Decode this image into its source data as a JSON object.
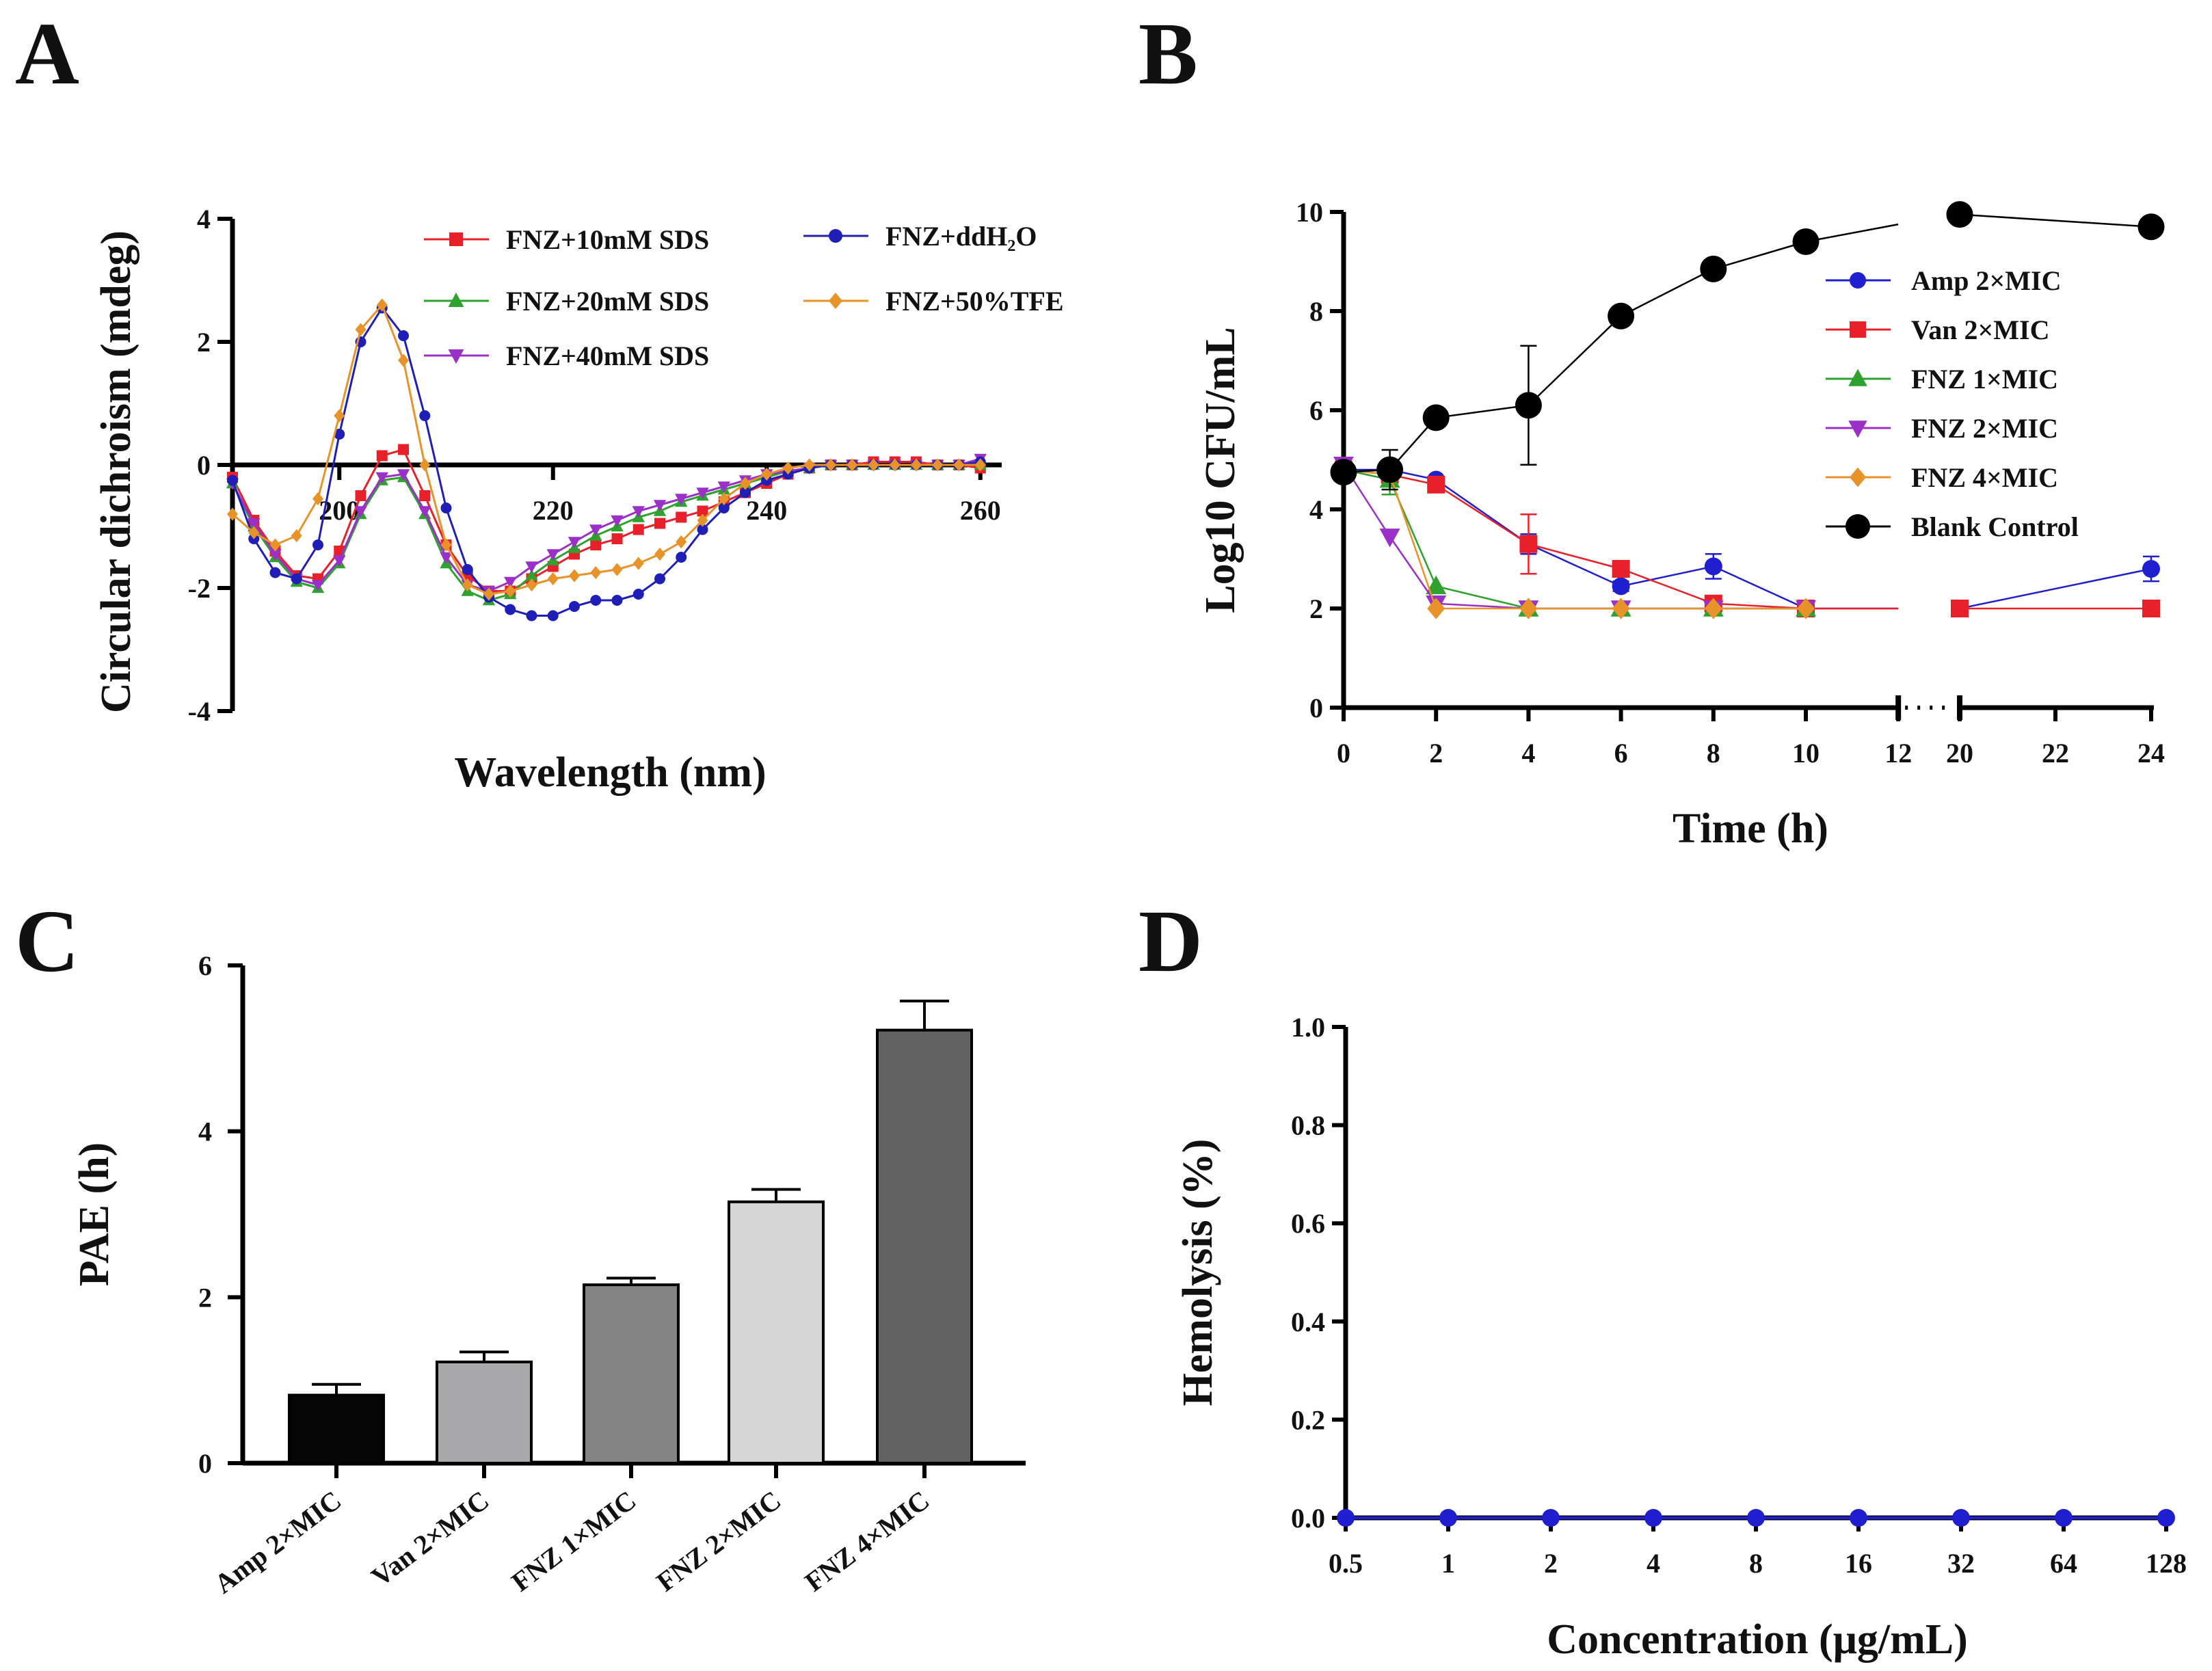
{
  "panels": {
    "A": "A",
    "B": "B",
    "C": "C",
    "D": "D"
  },
  "chart_data": [
    {
      "id": "A",
      "type": "line",
      "xlabel": "Wavelength (nm)",
      "ylabel": "Circular dichroism (mdeg)",
      "xlim": [
        190,
        262
      ],
      "ylim": [
        -4,
        4
      ],
      "xticks": [
        200,
        220,
        240,
        260
      ],
      "yticks": [
        -4,
        -2,
        0,
        2,
        4
      ],
      "series": [
        {
          "name": "FNZ+10mM SDS",
          "color": "#e8202a",
          "marker": "square",
          "x": [
            190,
            192,
            194,
            196,
            198,
            200,
            202,
            204,
            206,
            208,
            210,
            212,
            214,
            216,
            218,
            220,
            222,
            224,
            226,
            228,
            230,
            232,
            234,
            236,
            238,
            240,
            242,
            244,
            246,
            248,
            250,
            252,
            254,
            256,
            258,
            260
          ],
          "y": [
            -0.2,
            -0.9,
            -1.4,
            -1.8,
            -1.85,
            -1.4,
            -0.5,
            0.15,
            0.25,
            -0.5,
            -1.3,
            -1.8,
            -2.05,
            -2.05,
            -1.85,
            -1.65,
            -1.45,
            -1.3,
            -1.2,
            -1.05,
            -0.95,
            -0.85,
            -0.75,
            -0.6,
            -0.45,
            -0.3,
            -0.15,
            -0.05,
            0,
            0,
            0.05,
            0.05,
            0.05,
            0,
            0,
            -0.05
          ]
        },
        {
          "name": "FNZ+20mM SDS",
          "color": "#2ea12e",
          "marker": "triangle-up",
          "x": [
            190,
            192,
            194,
            196,
            198,
            200,
            202,
            204,
            206,
            208,
            210,
            212,
            214,
            216,
            218,
            220,
            222,
            224,
            226,
            228,
            230,
            232,
            234,
            236,
            238,
            240,
            242,
            244,
            246,
            248,
            250,
            252,
            254,
            256,
            258,
            260
          ],
          "y": [
            -0.3,
            -1.0,
            -1.5,
            -1.9,
            -2.0,
            -1.6,
            -0.8,
            -0.25,
            -0.2,
            -0.8,
            -1.6,
            -2.05,
            -2.2,
            -2.1,
            -1.8,
            -1.55,
            -1.35,
            -1.15,
            -1.0,
            -0.85,
            -0.75,
            -0.6,
            -0.5,
            -0.4,
            -0.3,
            -0.2,
            -0.1,
            -0.05,
            0,
            0,
            0,
            0,
            0,
            0,
            0,
            0
          ]
        },
        {
          "name": "FNZ+40mM SDS",
          "color": "#9b30c8",
          "marker": "triangle-down",
          "x": [
            190,
            192,
            194,
            196,
            198,
            200,
            202,
            204,
            206,
            208,
            210,
            212,
            214,
            216,
            218,
            220,
            222,
            224,
            226,
            228,
            230,
            232,
            234,
            236,
            238,
            240,
            242,
            244,
            246,
            248,
            250,
            252,
            254,
            256,
            258,
            260
          ],
          "y": [
            -0.3,
            -0.95,
            -1.45,
            -1.85,
            -1.95,
            -1.55,
            -0.75,
            -0.2,
            -0.15,
            -0.75,
            -1.5,
            -1.95,
            -2.05,
            -1.9,
            -1.65,
            -1.45,
            -1.25,
            -1.05,
            -0.9,
            -0.75,
            -0.65,
            -0.55,
            -0.45,
            -0.35,
            -0.25,
            -0.15,
            -0.1,
            -0.05,
            0,
            0,
            0,
            0,
            0,
            0,
            0,
            0.1
          ]
        },
        {
          "name": "FNZ+ddH₂O",
          "color": "#1f1fb8",
          "marker": "circle",
          "x": [
            190,
            192,
            194,
            196,
            198,
            200,
            202,
            204,
            206,
            208,
            210,
            212,
            214,
            216,
            218,
            220,
            222,
            224,
            226,
            228,
            230,
            232,
            234,
            236,
            238,
            240,
            242,
            244,
            246,
            248,
            250,
            252,
            254,
            256,
            258,
            260
          ],
          "y": [
            -0.25,
            -1.2,
            -1.75,
            -1.85,
            -1.3,
            0.5,
            2.0,
            2.55,
            2.1,
            0.8,
            -0.7,
            -1.7,
            -2.15,
            -2.35,
            -2.45,
            -2.45,
            -2.3,
            -2.2,
            -2.2,
            -2.1,
            -1.85,
            -1.5,
            -1.05,
            -0.7,
            -0.45,
            -0.25,
            -0.15,
            -0.05,
            0,
            0,
            0,
            0,
            0,
            0,
            0,
            0.05
          ]
        },
        {
          "name": "FNZ+50%TFE",
          "color": "#e8922a",
          "marker": "diamond",
          "x": [
            190,
            192,
            194,
            196,
            198,
            200,
            202,
            204,
            206,
            208,
            210,
            212,
            214,
            216,
            218,
            220,
            222,
            224,
            226,
            228,
            230,
            232,
            234,
            236,
            238,
            240,
            242,
            244,
            246,
            248,
            250,
            252,
            254,
            256,
            258,
            260
          ],
          "y": [
            -0.8,
            -1.1,
            -1.3,
            -1.15,
            -0.55,
            0.8,
            2.2,
            2.6,
            1.7,
            0.0,
            -1.3,
            -1.95,
            -2.1,
            -2.05,
            -1.95,
            -1.85,
            -1.8,
            -1.75,
            -1.7,
            -1.6,
            -1.45,
            -1.25,
            -0.9,
            -0.55,
            -0.3,
            -0.15,
            -0.05,
            0,
            0,
            0,
            0,
            0,
            0,
            0,
            0,
            0
          ]
        }
      ]
    },
    {
      "id": "B",
      "type": "line",
      "xlabel": "Time (h)",
      "ylabel": "Log10 CFU/mL",
      "ylim": [
        0,
        10
      ],
      "yticks": [
        0,
        2,
        4,
        6,
        8,
        10
      ],
      "xticks": [
        0,
        2,
        4,
        6,
        8,
        10,
        12,
        20,
        22,
        24
      ],
      "x_break": [
        12,
        20
      ],
      "series": [
        {
          "name": "Amp 2×MIC",
          "color": "#1f1fd0",
          "marker": "circle",
          "x": [
            0,
            1,
            2,
            4,
            6,
            8,
            10,
            20,
            24
          ],
          "y": [
            4.8,
            4.8,
            4.6,
            3.3,
            2.45,
            2.85,
            2.0,
            2.0,
            2.8
          ],
          "err": [
            0,
            0,
            0,
            0.2,
            0.1,
            0.25,
            0,
            0,
            0.25
          ]
        },
        {
          "name": "Van  2×MIC",
          "color": "#e8202a",
          "marker": "square",
          "x": [
            0,
            1,
            2,
            4,
            6,
            8,
            10,
            20,
            24
          ],
          "y": [
            4.8,
            4.7,
            4.5,
            3.3,
            2.8,
            2.1,
            2.0,
            2.0,
            2.0
          ],
          "err": [
            0,
            0,
            0,
            0.6,
            0,
            0,
            0,
            0,
            0
          ]
        },
        {
          "name": "FNZ 1×MIC",
          "color": "#2ea12e",
          "marker": "triangle-up",
          "x": [
            0,
            1,
            2,
            4,
            6,
            8,
            10
          ],
          "y": [
            4.8,
            4.6,
            2.45,
            2.0,
            2.0,
            2.0,
            2.0
          ],
          "err": [
            0,
            0.3,
            0,
            0,
            0,
            0,
            0
          ]
        },
        {
          "name": "FNZ 2×MIC",
          "color": "#9b30c8",
          "marker": "triangle-down",
          "x": [
            0,
            1,
            2,
            4,
            6,
            8,
            10
          ],
          "y": [
            4.9,
            3.45,
            2.1,
            2.0,
            2.0,
            2.0,
            2.0
          ],
          "err": [
            0,
            0,
            0,
            0,
            0,
            0,
            0
          ]
        },
        {
          "name": "FNZ 4×MIC",
          "color": "#e8922a",
          "marker": "diamond",
          "x": [
            0,
            1,
            2,
            4,
            6,
            8,
            10
          ],
          "y": [
            4.8,
            4.7,
            2.0,
            2.0,
            2.0,
            2.0,
            2.0
          ],
          "err": [
            0,
            0,
            0,
            0,
            0,
            0,
            0
          ]
        },
        {
          "name": "Blank Control",
          "color": "#000000",
          "marker": "circle-big",
          "x": [
            0,
            1,
            2,
            4,
            6,
            8,
            10,
            12,
            20,
            24
          ],
          "y": [
            4.75,
            4.8,
            5.85,
            6.1,
            7.9,
            8.85,
            9.4,
            9.75,
            9.95,
            9.7
          ],
          "err": [
            0,
            0.4,
            0,
            1.2,
            0,
            0,
            0,
            0,
            0,
            0
          ]
        }
      ]
    },
    {
      "id": "C",
      "type": "bar",
      "xlabel": "",
      "ylabel": "PAE (h)",
      "ylim": [
        0,
        6
      ],
      "yticks": [
        0,
        2,
        4,
        6
      ],
      "categories": [
        "Amp 2×MIC",
        "Van 2×MIC",
        "FNZ 1×MIC",
        "FNZ 2×MIC",
        "FNZ 4×MIC"
      ],
      "values": [
        0.82,
        1.22,
        2.15,
        3.15,
        5.22
      ],
      "errors": [
        0.13,
        0.12,
        0.08,
        0.15,
        0.35
      ],
      "colors": [
        "#050505",
        "#a8a8aa",
        "#848484",
        "#d6d6d6",
        "#626262"
      ]
    },
    {
      "id": "D",
      "type": "line",
      "xlabel": "Concentration (μg/mL)",
      "ylabel": "Hemolysis (%)",
      "ylim": [
        0,
        1.0
      ],
      "yticks": [
        "0.0",
        "0.2",
        "0.4",
        "0.6",
        "0.8",
        "1.0"
      ],
      "categories": [
        "0.5",
        "1",
        "2",
        "4",
        "8",
        "16",
        "32",
        "64",
        "128"
      ],
      "values": [
        0,
        0,
        0,
        0,
        0,
        0,
        0,
        0,
        0
      ],
      "color": "#1f1fd0"
    }
  ]
}
